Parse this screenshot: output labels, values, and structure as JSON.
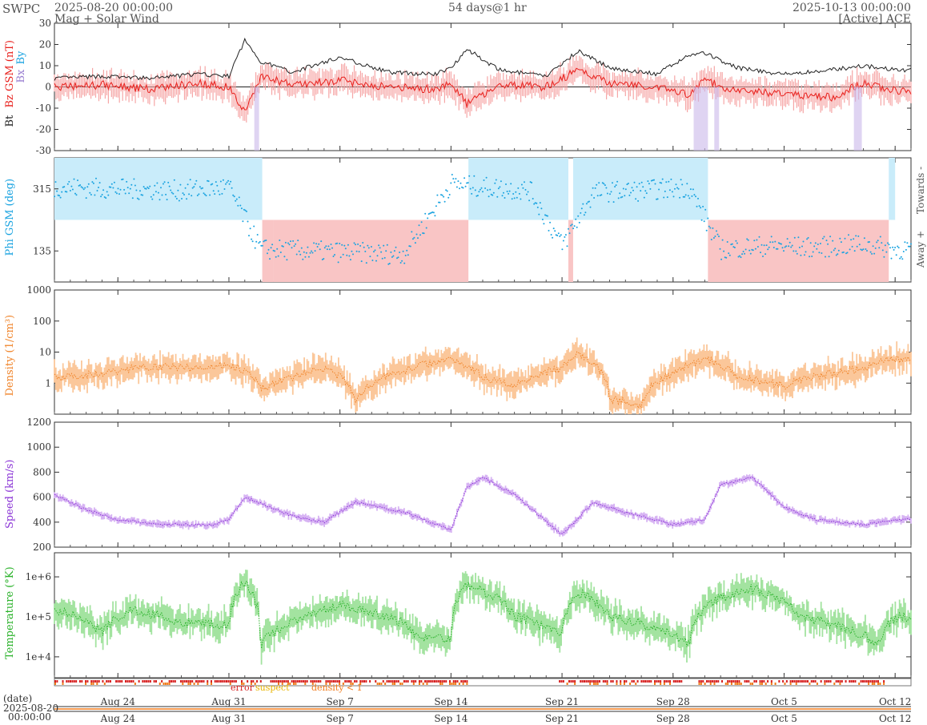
{
  "header": {
    "org": "SWPC",
    "start": "2025-08-20 00:00:00",
    "product": "Mag + Solar Wind",
    "span": "54 days@1 hr",
    "end": "2025-10-13 00:00:00",
    "source": "[Active] ACE"
  },
  "colors": {
    "bt": "#222222",
    "bz": "#e8201c",
    "bz_fill": "#f6a6a6",
    "by": "#9a7fd1",
    "phi": "#1aa3e0",
    "phi_toward_fill": "#c9ecfa",
    "phi_away_fill": "#f9c5c5",
    "density": "#f0842a",
    "density_fill": "#fbc79a",
    "speed": "#8a33d6",
    "speed_fill": "#d7b4f3",
    "temperature": "#2ab22a",
    "temperature_fill": "#a3e3a0",
    "error": "#d62020",
    "suspect": "#e8b400",
    "density_low": "#f07a1a"
  },
  "date_axis": {
    "label": "(date)",
    "start_date": "2025-08-20",
    "start_time": "00:00:00",
    "ticks": [
      "Aug 24",
      "Aug 31",
      "Sep 7",
      "Sep 14",
      "Sep 21",
      "Sep 28",
      "Oct 5",
      "Oct 12"
    ]
  },
  "flags": {
    "error": "error",
    "suspect": "suspect",
    "density_low": "density < 1"
  },
  "chart_data": [
    {
      "type": "line",
      "panel": "magnetic field",
      "ylabel_parts": [
        "Bt",
        "Bz GSM (nT)",
        "Bx",
        "By"
      ],
      "ylim": [
        -30,
        30
      ],
      "yticks": [
        "30",
        "20",
        "10",
        "0",
        "-10",
        "-20",
        "-30"
      ],
      "x_days_ticks": [
        "Aug 24",
        "Aug 31",
        "Sep 7",
        "Sep 14",
        "Sep 21",
        "Sep 28",
        "Oct 5",
        "Oct 12"
      ],
      "series": [
        {
          "name": "Bt",
          "x": [
            "2025-08-20",
            "2025-08-23",
            "2025-08-26",
            "2025-08-29",
            "2025-08-31",
            "2025-09-01",
            "2025-09-02",
            "2025-09-04",
            "2025-09-07",
            "2025-09-10",
            "2025-09-13",
            "2025-09-14",
            "2025-09-15",
            "2025-09-17",
            "2025-09-20",
            "2025-09-22",
            "2025-09-24",
            "2025-09-27",
            "2025-09-29",
            "2025-09-30",
            "2025-10-02",
            "2025-10-05",
            "2025-10-08",
            "2025-10-10",
            "2025-10-12"
          ],
          "values": [
            4,
            5,
            4,
            6,
            5,
            22,
            12,
            7,
            14,
            7,
            6,
            9,
            18,
            8,
            5,
            17,
            9,
            6,
            15,
            16,
            9,
            6,
            8,
            10,
            8
          ]
        },
        {
          "name": "Bz",
          "x": [
            "2025-08-20",
            "2025-08-23",
            "2025-08-26",
            "2025-08-29",
            "2025-08-31",
            "2025-09-01",
            "2025-09-02",
            "2025-09-04",
            "2025-09-07",
            "2025-09-10",
            "2025-09-13",
            "2025-09-14",
            "2025-09-15",
            "2025-09-17",
            "2025-09-20",
            "2025-09-22",
            "2025-09-24",
            "2025-09-27",
            "2025-09-29",
            "2025-09-30",
            "2025-10-02",
            "2025-10-05",
            "2025-10-08",
            "2025-10-10",
            "2025-10-12"
          ],
          "values": [
            0,
            1,
            -1,
            2,
            0,
            -12,
            5,
            1,
            3,
            0,
            -1,
            2,
            -8,
            1,
            0,
            8,
            2,
            0,
            -4,
            3,
            -2,
            -3,
            -5,
            2,
            -2
          ]
        }
      ]
    },
    {
      "type": "scatter",
      "panel": "phi",
      "ylabel": "Phi GSM (deg)",
      "ylim": [
        45,
        405
      ],
      "yticks": [
        "315",
        "135"
      ],
      "right_labels": [
        "Towards -",
        "Away +"
      ],
      "series": [
        {
          "name": "Phi",
          "x": [
            "2025-08-20",
            "2025-08-24",
            "2025-08-28",
            "2025-08-31",
            "2025-09-02",
            "2025-09-05",
            "2025-09-08",
            "2025-09-11",
            "2025-09-14",
            "2025-09-16",
            "2025-09-19",
            "2025-09-21",
            "2025-09-23",
            "2025-09-26",
            "2025-09-29",
            "2025-10-01",
            "2025-10-04",
            "2025-10-07",
            "2025-10-10",
            "2025-10-12"
          ],
          "values": [
            320,
            315,
            310,
            320,
            140,
            135,
            130,
            125,
            330,
            320,
            310,
            150,
            305,
            310,
            320,
            140,
            150,
            145,
            155,
            140
          ]
        }
      ]
    },
    {
      "type": "line",
      "panel": "density",
      "ylabel": "Density (1/cm³)",
      "yscale": "log",
      "ylim": [
        0.1,
        1000
      ],
      "yticks": [
        "1000",
        "100",
        "10",
        "1"
      ],
      "series": [
        {
          "name": "Density",
          "x": [
            "2025-08-20",
            "2025-08-23",
            "2025-08-26",
            "2025-08-29",
            "2025-08-31",
            "2025-09-02",
            "2025-09-04",
            "2025-09-06",
            "2025-09-08",
            "2025-09-11",
            "2025-09-14",
            "2025-09-16",
            "2025-09-18",
            "2025-09-21",
            "2025-09-22",
            "2025-09-24",
            "2025-09-26",
            "2025-09-28",
            "2025-09-30",
            "2025-10-02",
            "2025-10-05",
            "2025-10-08",
            "2025-10-10",
            "2025-10-12"
          ],
          "values": [
            1.5,
            2,
            3.5,
            3,
            4,
            0.6,
            1.5,
            3,
            0.2,
            2.5,
            6,
            1.5,
            0.8,
            3,
            8,
            0.3,
            0.2,
            2,
            6,
            1.5,
            0.8,
            2,
            3,
            6
          ]
        }
      ]
    },
    {
      "type": "line",
      "panel": "speed",
      "ylabel": "Speed (km/s)",
      "ylim": [
        200,
        1200
      ],
      "yticks": [
        "1200",
        "1000",
        "800",
        "600",
        "400",
        "200"
      ],
      "series": [
        {
          "name": "Speed",
          "x": [
            "2025-08-20",
            "2025-08-22",
            "2025-08-24",
            "2025-08-27",
            "2025-08-30",
            "2025-08-31",
            "2025-09-01",
            "2025-09-04",
            "2025-09-06",
            "2025-09-08",
            "2025-09-11",
            "2025-09-14",
            "2025-09-15",
            "2025-09-16",
            "2025-09-18",
            "2025-09-21",
            "2025-09-23",
            "2025-09-25",
            "2025-09-28",
            "2025-09-30",
            "2025-10-01",
            "2025-10-03",
            "2025-10-05",
            "2025-10-07",
            "2025-10-10",
            "2025-10-12"
          ],
          "values": [
            620,
            500,
            420,
            380,
            380,
            420,
            600,
            450,
            400,
            560,
            480,
            340,
            680,
            760,
            620,
            300,
            560,
            480,
            380,
            420,
            700,
            760,
            520,
            420,
            380,
            420
          ]
        }
      ]
    },
    {
      "type": "line",
      "panel": "temperature",
      "ylabel": "Temperature (°K)",
      "yscale": "log",
      "ylim": [
        3000,
        4000000
      ],
      "yticks": [
        "1e+6",
        "1e+5",
        "1e+4"
      ],
      "series": [
        {
          "name": "Temperature",
          "x": [
            "2025-08-20",
            "2025-08-23",
            "2025-08-25",
            "2025-08-28",
            "2025-08-31",
            "2025-09-01",
            "2025-09-02",
            "2025-09-05",
            "2025-09-07",
            "2025-09-10",
            "2025-09-12",
            "2025-09-14",
            "2025-09-15",
            "2025-09-18",
            "2025-09-21",
            "2025-09-22",
            "2025-09-24",
            "2025-09-27",
            "2025-09-29",
            "2025-10-01",
            "2025-10-03",
            "2025-10-06",
            "2025-10-09",
            "2025-10-11",
            "2025-10-12"
          ],
          "values": [
            150000,
            40000,
            150000,
            70000,
            60000,
            700000,
            20000,
            100000,
            200000,
            100000,
            30000,
            30000,
            600000,
            100000,
            30000,
            400000,
            100000,
            50000,
            20000,
            300000,
            500000,
            100000,
            50000,
            20000,
            100000
          ]
        }
      ]
    }
  ]
}
